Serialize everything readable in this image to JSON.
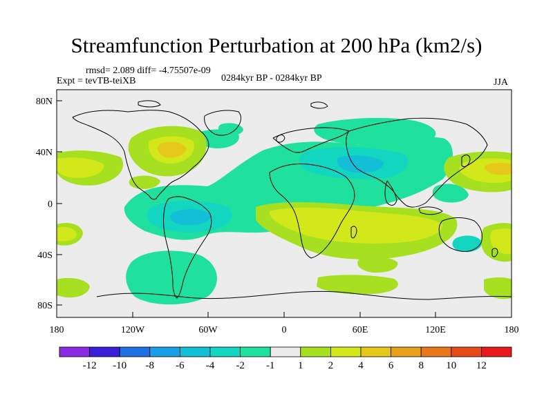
{
  "title": "Streamfunction Perturbation at 200 hPa (km2/s)",
  "stats": "rmsd= 2.089 diff= -4.75507e-09",
  "expt": "Expt = tevTB-teiXB",
  "period": "0284kyr BP - 0284kyr BP",
  "season": "JJA",
  "lat_ticks": [
    "80N",
    "40N",
    "0",
    "40S",
    "80S"
  ],
  "lon_ticks": [
    "180",
    "120W",
    "60W",
    "0",
    "60E",
    "120E",
    "180"
  ],
  "colorbar": {
    "labels": [
      "-12",
      "-10",
      "-8",
      "-6",
      "-4",
      "-2",
      "-1",
      "1",
      "2",
      "4",
      "6",
      "8",
      "10",
      "12"
    ],
    "colors": [
      "#8a2be2",
      "#3a1fd6",
      "#1f6fe0",
      "#18a0e6",
      "#12bfd6",
      "#12d6c0",
      "#20e0a0",
      "#ececec",
      "#a6e020",
      "#d2e81a",
      "#e6c81a",
      "#e6a01a",
      "#e6781a",
      "#e64a1a",
      "#e61a1a"
    ]
  },
  "fields": {
    "ocean_bg": "#ececec",
    "green": "#20e0a0",
    "cyan": "#12d6c0",
    "blue": "#12bfd6",
    "lime": "#a6e020",
    "yellow": "#d2e81a",
    "orange": "#e6c81a"
  }
}
